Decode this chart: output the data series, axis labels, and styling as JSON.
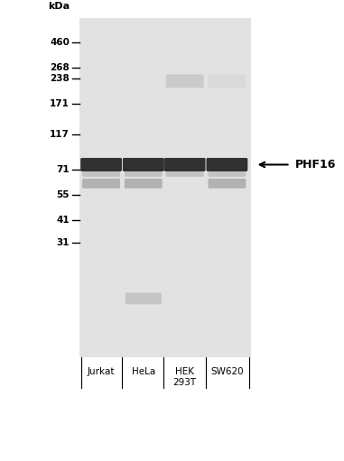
{
  "bg_color": "#ffffff",
  "gel_bg": "#e8e8e8",
  "kda_label": "kDa",
  "mw_markers": [
    460,
    268,
    238,
    171,
    117,
    71,
    55,
    41,
    31
  ],
  "lane_labels": [
    "Jurkat",
    "HeLa",
    "HEK\n293T",
    "SW620"
  ],
  "annotation_label": "PHF16",
  "main_band_color": "#1a1a1a",
  "faint_band_color": "#aaaaaa",
  "mid_band_color": "#888888"
}
